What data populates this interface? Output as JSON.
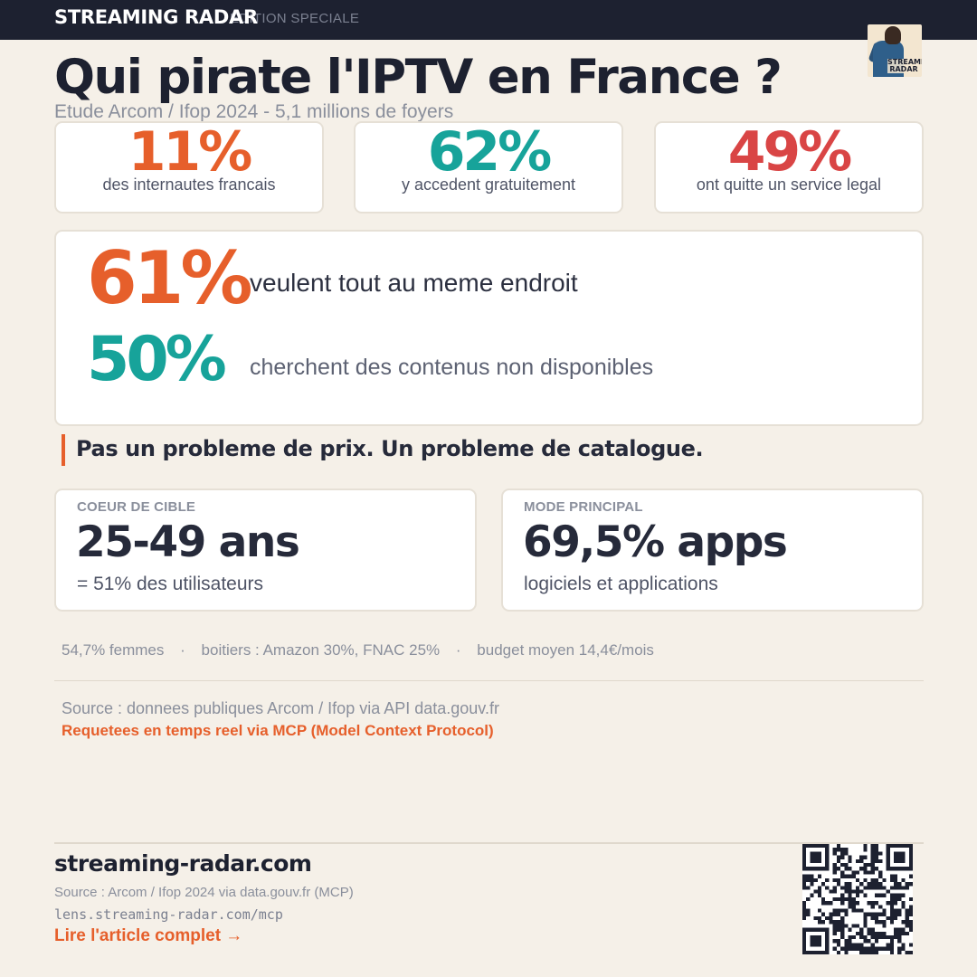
{
  "header": {
    "brand": "STREAMING RADAR",
    "edition": "EDITION SPECIALE",
    "logo_text": "STREAMING RADAR"
  },
  "title": "Qui pirate l'IPTV en France ?",
  "subtitle": "Etude Arcom / Ifop 2024  -  5,1 millions de foyers",
  "stats": [
    {
      "value": "11%",
      "label": "des internautes francais",
      "color": "#e65f2b"
    },
    {
      "value": "62%",
      "label": "y accedent gratuitement",
      "color": "#17a39a"
    },
    {
      "value": "49%",
      "label": "ont quitte un service legal",
      "color": "#d94545"
    }
  ],
  "highlights": [
    {
      "value": "61%",
      "text": "veulent tout au meme endroit"
    },
    {
      "value": "50%",
      "text": "cherchent des contenus non disponibles"
    }
  ],
  "quote": "Pas un probleme de prix. Un probleme de catalogue.",
  "info": [
    {
      "caption": "COEUR DE CIBLE",
      "value": "25-49 ans",
      "sub": "= 51% des utilisateurs"
    },
    {
      "caption": "MODE PRINCIPAL",
      "value": "69,5% apps",
      "sub": "logiciels et applications"
    }
  ],
  "facts": [
    "54,7% femmes",
    "boitiers : Amazon 30%, FNAC 25%",
    "budget moyen 14,4€/mois"
  ],
  "fact_separator": "·",
  "source_line": "Source : donnees publiques Arcom / Ifop via API data.gouv.fr",
  "mcp_line": "Requetees en temps reel via MCP (Model Context Protocol)",
  "footer": {
    "site": "streaming-radar.com",
    "source": "Source : Arcom / Ifop 2024 via data.gouv.fr (MCP)",
    "url": "lens.streaming-radar.com/mcp",
    "link": "Lire l'article complet →"
  },
  "colors": {
    "accent": "#e65f2b",
    "teal": "#17a39a",
    "red": "#d94545",
    "dark": "#1d2130",
    "background": "#f5f0e8"
  },
  "icons": {
    "logo": "streaming-radar-logo",
    "qr": "qr-code"
  }
}
